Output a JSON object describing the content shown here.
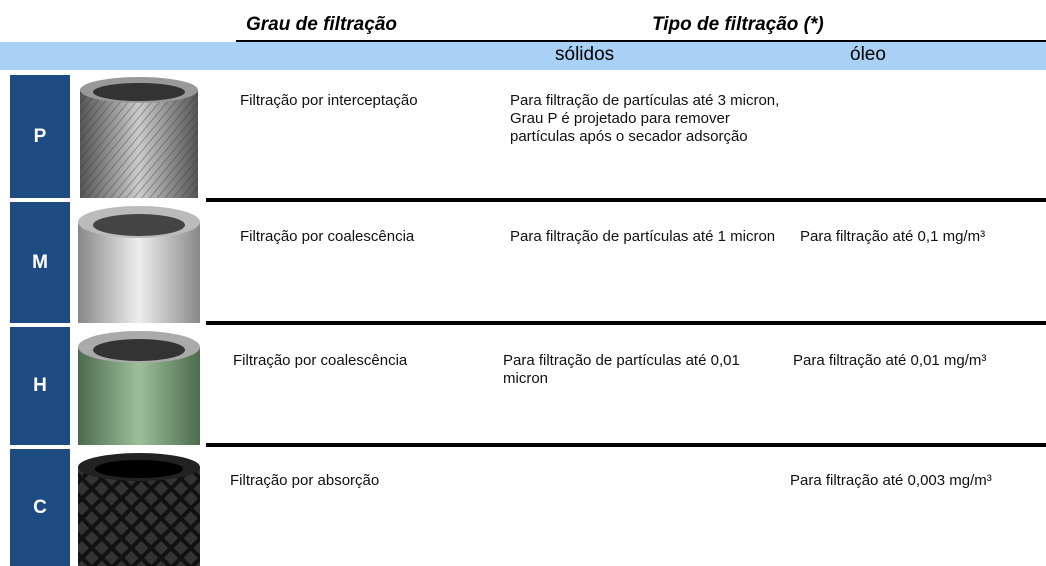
{
  "header": {
    "grade": "Grau de filtração",
    "type": "Tipo de filtração (*)",
    "solids": "sólidos",
    "oil": "óleo"
  },
  "rows": [
    {
      "grade": "P",
      "filtration": "Filtração por interceptação",
      "solids": "Para filtração de partículas até 3 micron, Grau P é projetado para remover partículas após o secador adsorção"
    },
    {
      "grade": "M",
      "filtration": "Filtração por coalescência",
      "solids": "Para filtração de partículas até 1 micron",
      "oil": "Para filtração até 0,1 mg/m³"
    },
    {
      "grade": "H",
      "filtration": "Filtração por coalescência",
      "solids": "Para filtração de partículas até 0,01 micron",
      "oil": "Para filtração até 0,01 mg/m³"
    },
    {
      "grade": "C",
      "filtration": "Filtração por absorção",
      "oil": "Para filtração até 0,003 mg/m³"
    }
  ]
}
